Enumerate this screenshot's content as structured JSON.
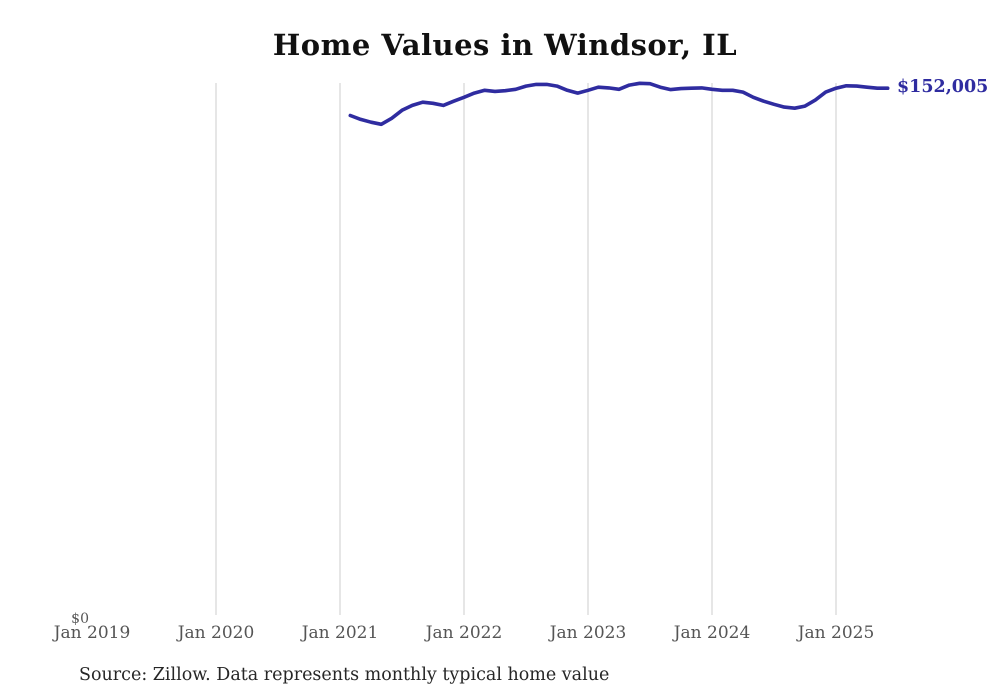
{
  "header": {
    "title": "Home Values in Windsor, IL"
  },
  "footer": {
    "source_note": "Source: Zillow. Data represents monthly typical home value"
  },
  "colors": {
    "line": "#2f2ca0",
    "gridline": "#cccccc",
    "title_text": "#111111",
    "axis_text": "#555555",
    "source_text": "#262626"
  },
  "chart_data": {
    "type": "line",
    "title": "Home Values in Windsor, IL",
    "xlabel": "",
    "ylabel": "",
    "ylim": [
      0,
      153500
    ],
    "grid": "vertical-only",
    "legend_position": "none",
    "y_axis": {
      "zero_label": "$0"
    },
    "end_label": "$152,005",
    "x_ticks": [
      {
        "label": "Jan 2019",
        "gridline": false
      },
      {
        "label": "Jan 2020",
        "gridline": true
      },
      {
        "label": "Jan 2021",
        "gridline": true
      },
      {
        "label": "Jan 2022",
        "gridline": true
      },
      {
        "label": "Jan 2023",
        "gridline": true
      },
      {
        "label": "Jan 2024",
        "gridline": true
      },
      {
        "label": "Jan 2025",
        "gridline": true
      }
    ],
    "series": [
      {
        "name": "Monthly typical home value",
        "color": "#2f2ca0",
        "x": [
          "2021-02",
          "2021-03",
          "2021-04",
          "2021-05",
          "2021-06",
          "2021-07",
          "2021-08",
          "2021-09",
          "2021-10",
          "2021-11",
          "2021-12",
          "2022-01",
          "2022-02",
          "2022-03",
          "2022-04",
          "2022-05",
          "2022-06",
          "2022-07",
          "2022-08",
          "2022-09",
          "2022-10",
          "2022-11",
          "2022-12",
          "2023-01",
          "2023-02",
          "2023-03",
          "2023-04",
          "2023-05",
          "2023-06",
          "2023-07",
          "2023-08",
          "2023-09",
          "2023-10",
          "2023-11",
          "2023-12",
          "2024-01",
          "2024-02",
          "2024-03",
          "2024-04",
          "2024-05",
          "2024-06",
          "2024-07",
          "2024-08",
          "2024-09",
          "2024-10",
          "2024-11",
          "2024-12",
          "2025-01",
          "2025-02",
          "2025-03",
          "2025-04",
          "2025-05",
          "2025-06"
        ],
        "values": [
          144200,
          143100,
          142300,
          141700,
          143400,
          145700,
          147100,
          148000,
          147700,
          147100,
          148300,
          149400,
          150600,
          151400,
          151100,
          151300,
          151700,
          152600,
          153100,
          153100,
          152600,
          151400,
          150600,
          151400,
          152300,
          152100,
          151700,
          152900,
          153400,
          153300,
          152300,
          151600,
          151900,
          152000,
          152100,
          151700,
          151400,
          151400,
          150900,
          149400,
          148300,
          147400,
          146600,
          146300,
          146900,
          148600,
          150900,
          152000,
          152700,
          152600,
          152300,
          152000,
          152005
        ]
      }
    ]
  }
}
